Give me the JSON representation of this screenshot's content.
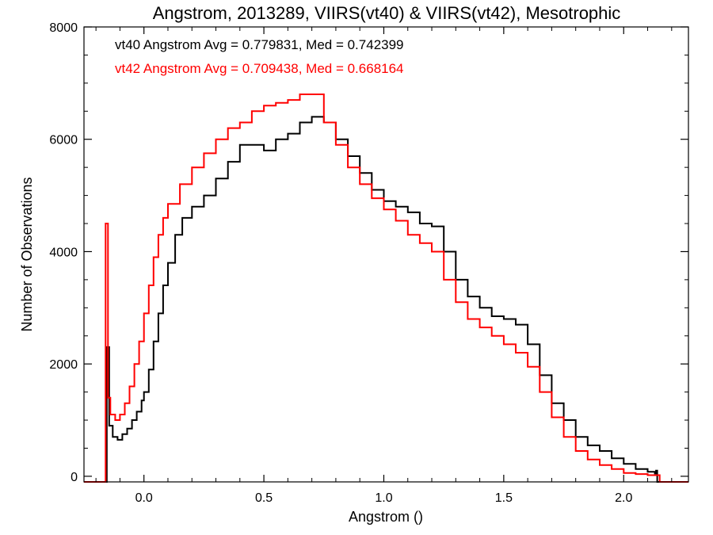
{
  "chart_data": {
    "type": "line",
    "title": "Angstrom, 2013289, VIIRS(vt40) & VIIRS(vt42), Mesotrophic",
    "xlabel": "Angstrom ()",
    "ylabel": "Number of Observations",
    "xlim": [
      -0.25,
      2.27
    ],
    "ylim": [
      -100,
      8000
    ],
    "x_ticks": [
      0.0,
      0.5,
      1.0,
      1.5,
      2.0
    ],
    "x_tick_labels": [
      "0.0",
      "0.5",
      "1.0",
      "1.5",
      "2.0"
    ],
    "y_ticks": [
      0,
      2000,
      4000,
      6000,
      8000
    ],
    "y_tick_labels": [
      "0",
      "2000",
      "4000",
      "6000",
      "8000"
    ],
    "grid": false,
    "legend_position": "top-left",
    "annotations": [
      {
        "text": "vt40 Angstrom Avg = 0.779831, Med = 0.742399",
        "color": "#000000"
      },
      {
        "text": "vt42 Angstrom Avg = 0.709438, Med = 0.668164",
        "color": "#ff0000"
      }
    ],
    "series": [
      {
        "color": "#000000",
        "points": [
          [
            -0.25,
            -100
          ],
          [
            -0.155,
            -100
          ],
          [
            -0.155,
            2300
          ],
          [
            -0.145,
            900
          ],
          [
            -0.13,
            700
          ],
          [
            -0.11,
            650
          ],
          [
            -0.09,
            750
          ],
          [
            -0.07,
            850
          ],
          [
            -0.05,
            1000
          ],
          [
            -0.03,
            1150
          ],
          [
            -0.01,
            1350
          ],
          [
            0.0,
            1500
          ],
          [
            0.02,
            1900
          ],
          [
            0.04,
            2400
          ],
          [
            0.06,
            2900
          ],
          [
            0.08,
            3400
          ],
          [
            0.1,
            3800
          ],
          [
            0.13,
            4300
          ],
          [
            0.16,
            4600
          ],
          [
            0.2,
            4800
          ],
          [
            0.25,
            5000
          ],
          [
            0.3,
            5300
          ],
          [
            0.35,
            5600
          ],
          [
            0.4,
            5900
          ],
          [
            0.45,
            5900
          ],
          [
            0.5,
            5800
          ],
          [
            0.55,
            6000
          ],
          [
            0.6,
            6100
          ],
          [
            0.65,
            6300
          ],
          [
            0.7,
            6400
          ],
          [
            0.75,
            6300
          ],
          [
            0.8,
            6000
          ],
          [
            0.85,
            5700
          ],
          [
            0.9,
            5400
          ],
          [
            0.95,
            5100
          ],
          [
            1.0,
            4900
          ],
          [
            1.05,
            4800
          ],
          [
            1.1,
            4700
          ],
          [
            1.15,
            4500
          ],
          [
            1.2,
            4450
          ],
          [
            1.25,
            4000
          ],
          [
            1.3,
            3500
          ],
          [
            1.35,
            3200
          ],
          [
            1.4,
            3000
          ],
          [
            1.45,
            2850
          ],
          [
            1.5,
            2800
          ],
          [
            1.55,
            2700
          ],
          [
            1.6,
            2350
          ],
          [
            1.65,
            1800
          ],
          [
            1.7,
            1300
          ],
          [
            1.75,
            1000
          ],
          [
            1.8,
            700
          ],
          [
            1.85,
            550
          ],
          [
            1.9,
            450
          ],
          [
            1.95,
            320
          ],
          [
            2.0,
            220
          ],
          [
            2.05,
            130
          ],
          [
            2.1,
            80
          ],
          [
            2.13,
            50
          ],
          [
            2.135,
            100
          ],
          [
            2.14,
            -100
          ],
          [
            2.27,
            -100
          ]
        ]
      },
      {
        "color": "#ff0000",
        "points": [
          [
            -0.25,
            -100
          ],
          [
            -0.16,
            -100
          ],
          [
            -0.16,
            4500
          ],
          [
            -0.15,
            1400
          ],
          [
            -0.14,
            1100
          ],
          [
            -0.12,
            1000
          ],
          [
            -0.1,
            1100
          ],
          [
            -0.08,
            1300
          ],
          [
            -0.06,
            1600
          ],
          [
            -0.04,
            2000
          ],
          [
            -0.02,
            2400
          ],
          [
            0.0,
            2900
          ],
          [
            0.02,
            3400
          ],
          [
            0.04,
            3900
          ],
          [
            0.06,
            4300
          ],
          [
            0.08,
            4600
          ],
          [
            0.1,
            4850
          ],
          [
            0.15,
            5200
          ],
          [
            0.2,
            5500
          ],
          [
            0.25,
            5750
          ],
          [
            0.3,
            6000
          ],
          [
            0.35,
            6200
          ],
          [
            0.4,
            6300
          ],
          [
            0.45,
            6500
          ],
          [
            0.5,
            6600
          ],
          [
            0.55,
            6650
          ],
          [
            0.6,
            6700
          ],
          [
            0.65,
            6800
          ],
          [
            0.7,
            6800
          ],
          [
            0.75,
            6300
          ],
          [
            0.8,
            5900
          ],
          [
            0.85,
            5500
          ],
          [
            0.9,
            5200
          ],
          [
            0.95,
            4950
          ],
          [
            1.0,
            4750
          ],
          [
            1.05,
            4550
          ],
          [
            1.1,
            4300
          ],
          [
            1.15,
            4150
          ],
          [
            1.2,
            4000
          ],
          [
            1.25,
            3500
          ],
          [
            1.3,
            3100
          ],
          [
            1.35,
            2800
          ],
          [
            1.4,
            2650
          ],
          [
            1.45,
            2500
          ],
          [
            1.5,
            2350
          ],
          [
            1.55,
            2200
          ],
          [
            1.6,
            1950
          ],
          [
            1.65,
            1500
          ],
          [
            1.7,
            1050
          ],
          [
            1.75,
            700
          ],
          [
            1.8,
            450
          ],
          [
            1.85,
            300
          ],
          [
            1.9,
            200
          ],
          [
            1.95,
            130
          ],
          [
            2.0,
            60
          ],
          [
            2.05,
            40
          ],
          [
            2.1,
            20
          ],
          [
            2.15,
            -100
          ],
          [
            2.27,
            -100
          ]
        ]
      }
    ]
  }
}
